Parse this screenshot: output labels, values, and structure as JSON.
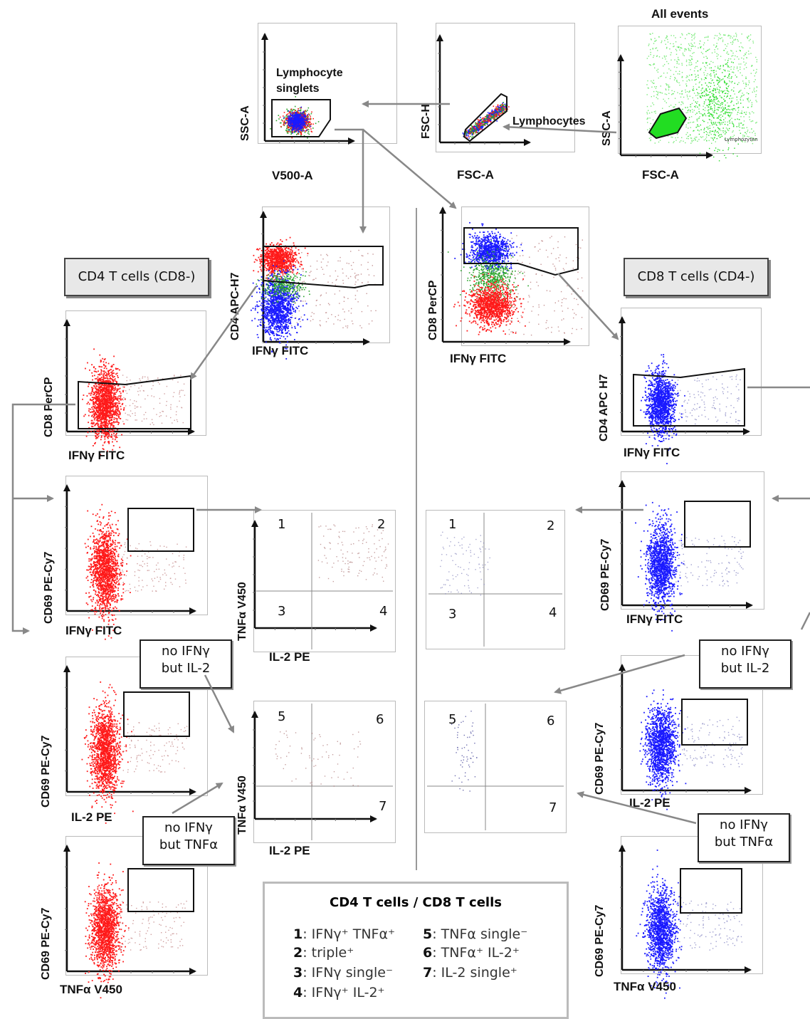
{
  "colors": {
    "cd4": "#ff1a1a",
    "cd8": "#1a1aff",
    "mixed": "#2aa52a",
    "lymph": "#22dd22",
    "arrow": "#888888"
  },
  "top": {
    "all_events": "All events",
    "lymphocytes_label": "Lymphocytes",
    "lymphocyte_singlets": "Lymphocyte\nsinglets",
    "plot1": {
      "xlabel": "V500-A",
      "ylabel": "SSC-A"
    },
    "plot2": {
      "xlabel": "FSC-A",
      "ylabel": "FSC-H"
    },
    "plot3": {
      "xlabel": "FSC-A",
      "ylabel": "SSC-A",
      "gate_text": "Lymphozyten"
    }
  },
  "cd4_split": {
    "xlabel": "IFNγ FITC",
    "ylabel": "CD4 APC-H7"
  },
  "cd8_split": {
    "xlabel": "IFNγ FITC",
    "ylabel": "CD8 PerCP"
  },
  "cd4_title": "CD4 T cells (CD8-)",
  "cd8_title": "CD8 T cells (CD4-)",
  "left": {
    "p1": {
      "xlabel": "IFNγ FITC",
      "ylabel": "CD8 PerCP"
    },
    "p2": {
      "xlabel": "IFNγ FITC",
      "ylabel": "CD69 PE-Cy7"
    },
    "p3": {
      "xlabel": "IL-2 PE",
      "ylabel": "CD69 PE-Cy7"
    },
    "p4": {
      "xlabel": "TNFα V450",
      "ylabel": "CD69 PE-Cy7"
    },
    "box_il2": "no IFNγ\nbut IL-2",
    "box_tnf": "no IFNγ\nbut TNFα"
  },
  "right": {
    "p1": {
      "xlabel": "IFNγ FITC",
      "ylabel": "CD4 APC H7"
    },
    "p2": {
      "xlabel": "IFNγ FITC",
      "ylabel": "CD69 PE-Cy7"
    },
    "p3": {
      "xlabel": "IL-2 PE",
      "ylabel": "CD69 PE-Cy7"
    },
    "p4": {
      "xlabel": "TNFα V450",
      "ylabel": "CD69 PE-Cy7"
    },
    "box_il2": "no IFNγ\nbut IL-2",
    "box_tnf": "no IFNγ\nbut TNFα"
  },
  "quad_left_top": {
    "xlabel": "IL-2 PE",
    "ylabel": "TNFα V450",
    "q": [
      "1",
      "2",
      "3",
      "4"
    ]
  },
  "quad_left_bot": {
    "xlabel": "IL-2 PE",
    "ylabel": "TNFα V450",
    "q": [
      "5",
      "6",
      "7"
    ]
  },
  "quad_right_top": {
    "q": [
      "1",
      "2",
      "3",
      "4"
    ]
  },
  "quad_right_bot": {
    "q": [
      "5",
      "6",
      "7"
    ]
  },
  "legend": {
    "title": "CD4 T cells / CD8 T cells",
    "items": [
      {
        "n": "1",
        "text": ": IFNγ⁺ TNFα⁺"
      },
      {
        "n": "2",
        "text": ": triple⁺"
      },
      {
        "n": "3",
        "text": ": IFNγ single⁻"
      },
      {
        "n": "4",
        "text": ": IFNγ⁺ IL-2⁺"
      },
      {
        "n": "5",
        "text": ": TNFα single⁻"
      },
      {
        "n": "6",
        "text": ": TNFα⁺ IL-2⁺"
      },
      {
        "n": "7",
        "text": ": IL-2 single⁺"
      }
    ]
  }
}
